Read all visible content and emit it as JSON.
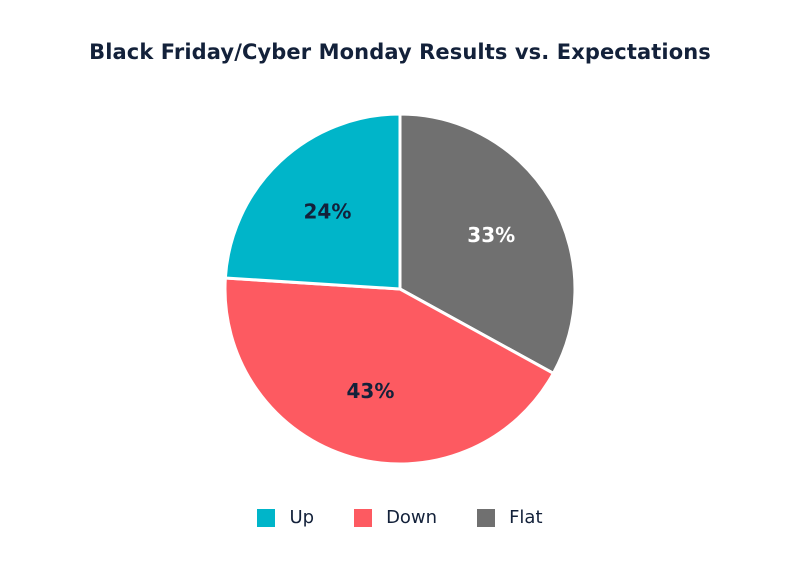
{
  "chart_data": {
    "type": "pie",
    "title": "Black Friday/Cyber Monday Results vs. Expectations",
    "slices": [
      {
        "name": "Flat",
        "value": 33,
        "label": "33%",
        "color": "#707070",
        "label_color": "#ffffff"
      },
      {
        "name": "Down",
        "value": 43,
        "label": "43%",
        "color": "#fd5a61",
        "label_color": "#13213a"
      },
      {
        "name": "Up",
        "value": 24,
        "label": "24%",
        "color": "#00b5c9",
        "label_color": "#13213a"
      }
    ],
    "legend": [
      {
        "name": "Up",
        "color": "#00b5c9"
      },
      {
        "name": "Down",
        "color": "#fd5a61"
      },
      {
        "name": "Flat",
        "color": "#707070"
      }
    ],
    "legend_position": "bottom-center",
    "slice_border_color": "#ffffff"
  }
}
